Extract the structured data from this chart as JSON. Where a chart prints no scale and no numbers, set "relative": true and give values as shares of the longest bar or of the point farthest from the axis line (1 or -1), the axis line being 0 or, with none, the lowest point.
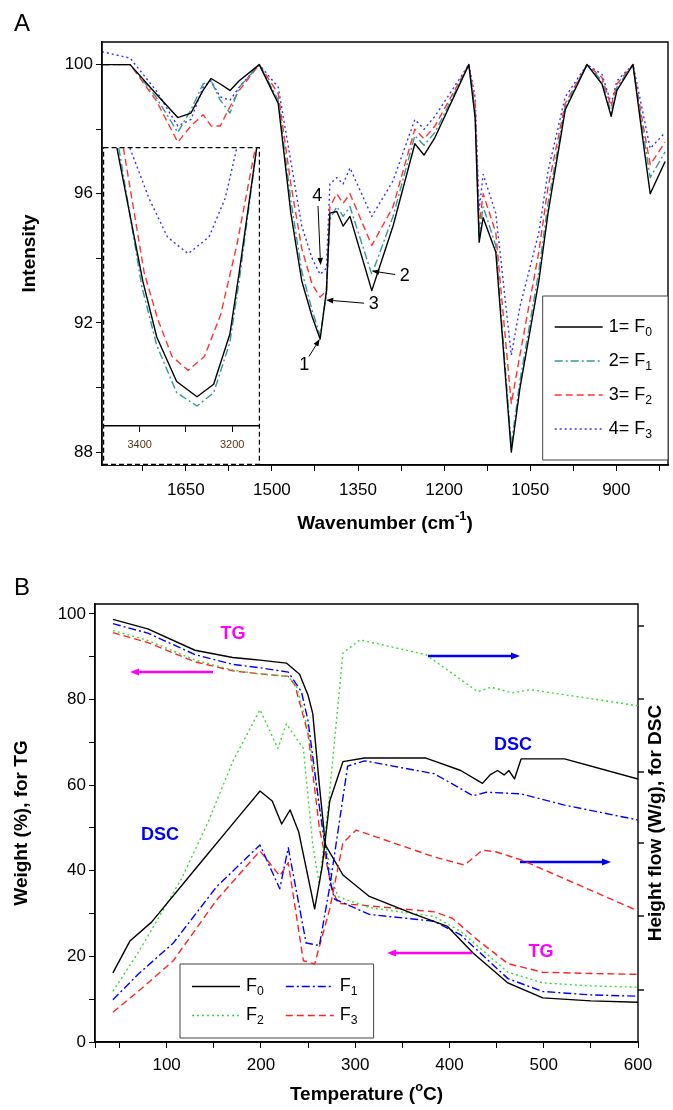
{
  "chart_data": [
    {
      "type": "line",
      "title": "A",
      "xlabel": "Wavenumber (cm$^{-1}$)",
      "ylabel": "Intensity",
      "grid": false,
      "legend": "bottom right",
      "marker": "none",
      "xlim": [
        1796,
        810
      ],
      "xticks": [
        {
          "value": 1725,
          "label": null
        },
        1650,
        {
          "value": 1575,
          "label": null
        },
        1500,
        {
          "value": 1425,
          "label": null
        },
        1350,
        {
          "value": 1275,
          "label": null
        },
        1200,
        {
          "value": 1125,
          "label": null
        },
        1050,
        {
          "value": 975,
          "label": null
        },
        900,
        {
          "value": 825,
          "label": null
        }
      ],
      "ylim": [
        87.6,
        100.7
      ],
      "yticks": [
        88,
        {
          "value": 90,
          "label": null
        },
        92,
        {
          "value": 94,
          "label": null
        },
        96,
        {
          "value": 98,
          "label": null
        },
        100
      ],
      "annotations": [
        {
          "text": "1",
          "x": 1416,
          "y": 91.5
        },
        {
          "text": "2",
          "x": 1326,
          "y": 93.6
        },
        {
          "text": "3",
          "x": 1406,
          "y": 92.7
        },
        {
          "text": "4",
          "x": 1416,
          "y": 93.8
        }
      ],
      "x": [
        1796,
        1747,
        1702,
        1664,
        1641,
        1620,
        1606,
        1590,
        1573,
        1557,
        1522,
        1489,
        1467,
        1448,
        1430,
        1416,
        1405,
        1399,
        1387,
        1376,
        1364,
        1326,
        1289,
        1251,
        1235,
        1216,
        1157,
        1146,
        1139,
        1132,
        1110,
        1083,
        1068,
        1035,
        1019,
        989,
        951,
        925,
        909,
        899,
        871,
        857,
        841,
        815
      ],
      "series": [
        {
          "name": "1= F$_{0}$",
          "color": "#000000",
          "line_style": "solid",
          "values": [
            100,
            100,
            99.1,
            98.36,
            98.5,
            99.2,
            99.57,
            99.4,
            99.2,
            99.5,
            100,
            98.8,
            95.4,
            93.3,
            92.2,
            91.5,
            93.0,
            95.4,
            95.45,
            95.0,
            95.3,
            93.0,
            95.0,
            97.55,
            97.2,
            97.74,
            100,
            98.36,
            94.5,
            95.26,
            94.2,
            88.0,
            89.97,
            93.3,
            95.4,
            98.6,
            100,
            99.4,
            98.4,
            99.2,
            100,
            98.1,
            96.0,
            97.0
          ]
        },
        {
          "name": "2= F$_{1}$",
          "color": "#339999",
          "line_style": "dashdot",
          "values": [
            100,
            100,
            99.0,
            97.9,
            98.6,
            99.4,
            99.5,
            98.9,
            98.5,
            99.3,
            100,
            98.9,
            95.8,
            93.6,
            92.4,
            91.6,
            92.9,
            95.2,
            95.6,
            95.3,
            95.6,
            93.5,
            95.3,
            97.8,
            97.5,
            97.9,
            100,
            98.5,
            94.7,
            95.6,
            94.4,
            88.2,
            90.2,
            93.6,
            95.7,
            98.7,
            100,
            99.5,
            98.5,
            99.3,
            100,
            98.3,
            96.5,
            97.3
          ]
        },
        {
          "name": "3= F$_{2}$",
          "color": "#ff3333",
          "line_style": "dashed",
          "values": [
            100,
            100,
            98.9,
            97.6,
            98.1,
            98.45,
            98.1,
            98.1,
            98.7,
            99.2,
            100,
            99.1,
            96.3,
            94.3,
            93.2,
            92.8,
            93.0,
            95.6,
            96.0,
            95.7,
            96.0,
            94.4,
            95.6,
            98.0,
            97.7,
            98.1,
            100,
            98.8,
            95.0,
            96.0,
            94.8,
            89.5,
            91.0,
            94.2,
            96.2,
            98.8,
            100,
            99.6,
            98.7,
            99.4,
            100,
            98.5,
            96.9,
            97.6
          ]
        },
        {
          "name": "4= F$_{3}$",
          "color": "#3333ff",
          "line_style": "dotted",
          "values": [
            100.4,
            100.2,
            99.2,
            98.1,
            98.3,
            99.3,
            99.5,
            99.0,
            98.9,
            99.3,
            100,
            99.3,
            97.0,
            95.0,
            94.0,
            93.5,
            93.7,
            96.3,
            96.5,
            96.3,
            96.8,
            95.3,
            96.4,
            98.3,
            98.0,
            98.4,
            100,
            99.0,
            95.5,
            96.6,
            95.4,
            91.0,
            92.5,
            94.8,
            96.7,
            99.0,
            100,
            99.7,
            98.8,
            99.5,
            100,
            98.8,
            97.4,
            97.9
          ]
        }
      ]
    },
    {
      "type": "line",
      "relative": true,
      "grid": false,
      "marker": "none",
      "tick_labels": "x",
      "xlim": [
        3477,
        3142
      ],
      "xticks": [
        3400,
        {
          "value": 3300,
          "label": null
        },
        3200
      ],
      "series": [
        {
          "color": "#000000",
          "line_style": "solid",
          "x": [
            3449,
            3393,
            3363,
            3320,
            3276,
            3240,
            3205,
            3185,
            3147
          ],
          "values": [
            1,
            0.52,
            0.32,
            0.16,
            0.105,
            0.15,
            0.33,
            0.55,
            1
          ]
        },
        {
          "color": "#339999",
          "line_style": "dashdot",
          "x": [
            3445,
            3395,
            3363,
            3320,
            3276,
            3240,
            3205,
            3185,
            3147
          ],
          "values": [
            1,
            0.5,
            0.29,
            0.12,
            0.072,
            0.12,
            0.3,
            0.52,
            1
          ]
        },
        {
          "color": "#ff3333",
          "line_style": "dashed",
          "x": [
            3435,
            3390,
            3360,
            3330,
            3295,
            3260,
            3225,
            3190,
            3150
          ],
          "values": [
            1,
            0.55,
            0.38,
            0.25,
            0.2,
            0.25,
            0.4,
            0.65,
            1
          ]
        },
        {
          "color": "#3333ff",
          "line_style": "dotted",
          "x": [
            3421,
            3380,
            3340,
            3295,
            3250,
            3215,
            3190
          ],
          "values": [
            1,
            0.82,
            0.68,
            0.62,
            0.68,
            0.82,
            1
          ]
        }
      ]
    },
    {
      "type": "line",
      "title": "B",
      "xlabel": "Temperature ($^{o}$C)",
      "ylabel": "Weight (%), for TG",
      "grid": false,
      "legend": "bottom left",
      "marker": "none",
      "xlim": [
        24,
        600
      ],
      "xticks": [
        {
          "value": 50,
          "label": null
        },
        100,
        {
          "value": 150,
          "label": null
        },
        200,
        {
          "value": 250,
          "label": null
        },
        300,
        {
          "value": 350,
          "label": null
        },
        400,
        {
          "value": 450,
          "label": null
        },
        500,
        {
          "value": 550,
          "label": null
        },
        600
      ],
      "ylim": [
        0,
        102.3
      ],
      "yticks": [
        0,
        {
          "value": 10,
          "label": null
        },
        20,
        {
          "value": 30,
          "label": null
        },
        40,
        {
          "value": 50,
          "label": null
        },
        60,
        {
          "value": 70,
          "label": null
        },
        80,
        {
          "value": 90,
          "label": null
        },
        100
      ],
      "annotations": [
        "TG",
        "DSC",
        "DSC",
        "TG"
      ],
      "series": [
        {
          "name": "F$_{0}$",
          "color": "#000000",
          "line_style": "solid",
          "x": [
            43,
            80,
            130,
            170,
            199,
            227,
            241,
            250,
            255,
            262,
            268.5,
            287,
            315,
            361,
            398,
            425,
            462,
            499,
            550,
            600
          ],
          "values": [
            98.7,
            96.5,
            91.5,
            89.8,
            89.2,
            88.5,
            85.9,
            81,
            76.7,
            60,
            46,
            39.0,
            34,
            30,
            27,
            20.8,
            13.8,
            10.3,
            9.6,
            9.3
          ]
        },
        {
          "name": "F$_{1}$",
          "color": "#0000ff",
          "line_style": "dashdot",
          "x": [
            43,
            80,
            130,
            170,
            199,
            229,
            243,
            250,
            262,
            273,
            278,
            315,
            384,
            412,
            462,
            499,
            550,
            600
          ],
          "values": [
            97.7,
            95.5,
            90.5,
            88.2,
            87.4,
            86.4,
            81.8,
            75,
            55,
            38,
            33.4,
            29.8,
            28.2,
            25,
            14.8,
            11.8,
            11,
            10.7
          ]
        },
        {
          "name": "F$_{2}$",
          "color": "#33dd33",
          "line_style": "dotted",
          "x": [
            43,
            80,
            130,
            170,
            199,
            229,
            238,
            250,
            262,
            275,
            282,
            315,
            384,
            412,
            462,
            499,
            550,
            600
          ],
          "values": [
            96.1,
            93.8,
            89.2,
            86.9,
            85.9,
            85.4,
            82.9,
            73,
            55,
            38,
            33.9,
            31.4,
            29.3,
            25.8,
            16.3,
            13.8,
            13.1,
            12.8
          ]
        },
        {
          "name": "F$_{3}$",
          "color": "#ff2222",
          "line_style": "dashed",
          "x": [
            43,
            80,
            130,
            170,
            199,
            229,
            236,
            250,
            262,
            275,
            282,
            315,
            384,
            403,
            430,
            462,
            499,
            550,
            600
          ],
          "values": [
            95.6,
            93.3,
            88.8,
            86.7,
            86,
            85.4,
            83.4,
            72,
            50,
            36,
            32.4,
            31.8,
            30.4,
            28.9,
            23.8,
            18.3,
            16.3,
            16,
            15.8
          ]
        }
      ]
    },
    {
      "type": "line",
      "relative": true,
      "ylabel": "Height flow (W/g), for DSC",
      "grid": false,
      "marker": "none",
      "tick_labels": false,
      "xlim": [
        24,
        600
      ],
      "series": [
        {
          "color": "#000000",
          "line_style": "solid",
          "x": [
            43,
            61,
            84,
            130,
            176,
            199,
            212,
            222,
            231,
            240,
            257,
            265,
            273,
            287,
            310,
            375,
            412,
            435,
            443,
            451,
            458,
            463,
            469,
            476,
            522,
            600
          ],
          "values": [
            0.172,
            0.251,
            0.298,
            0.429,
            0.559,
            0.624,
            0.599,
            0.542,
            0.577,
            0.523,
            0.331,
            0.436,
            0.599,
            0.697,
            0.706,
            0.706,
            0.675,
            0.643,
            0.664,
            0.675,
            0.664,
            0.675,
            0.654,
            0.704,
            0.704,
            0.654
          ]
        },
        {
          "color": "#0000ff",
          "line_style": "dashdot",
          "x": [
            43,
            70,
            107,
            153,
            199,
            220,
            229,
            248,
            262,
            273,
            292,
            310,
            384,
            425,
            439,
            476,
            522,
            600
          ],
          "values": [
            0.105,
            0.169,
            0.246,
            0.386,
            0.49,
            0.381,
            0.483,
            0.246,
            0.24,
            0.386,
            0.686,
            0.699,
            0.667,
            0.612,
            0.621,
            0.617,
            0.589,
            0.552
          ]
        },
        {
          "color": "#33dd33",
          "line_style": "dotted",
          "x": [
            43,
            70,
            116,
            144,
            170,
            199,
            218,
            227,
            245,
            255,
            262,
            272,
            287,
            305,
            375,
            430,
            444,
            467,
            486,
            600
          ],
          "values": [
            0.126,
            0.223,
            0.407,
            0.547,
            0.697,
            0.826,
            0.73,
            0.791,
            0.73,
            0.49,
            0.392,
            0.599,
            0.967,
            1,
            0.963,
            0.871,
            0.882,
            0.868,
            0.876,
            0.836
          ]
        },
        {
          "color": "#ff2222",
          "line_style": "dashed",
          "x": [
            43,
            70,
            107,
            153,
            199,
            220,
            229,
            245,
            257,
            273,
            287,
            301,
            384,
            416,
            435,
            449,
            476,
            600
          ],
          "values": [
            0.074,
            0.126,
            0.202,
            0.353,
            0.475,
            0.413,
            0.446,
            0.202,
            0.194,
            0.331,
            0.495,
            0.527,
            0.46,
            0.44,
            0.477,
            0.473,
            0.453,
            0.326
          ]
        }
      ]
    }
  ]
}
